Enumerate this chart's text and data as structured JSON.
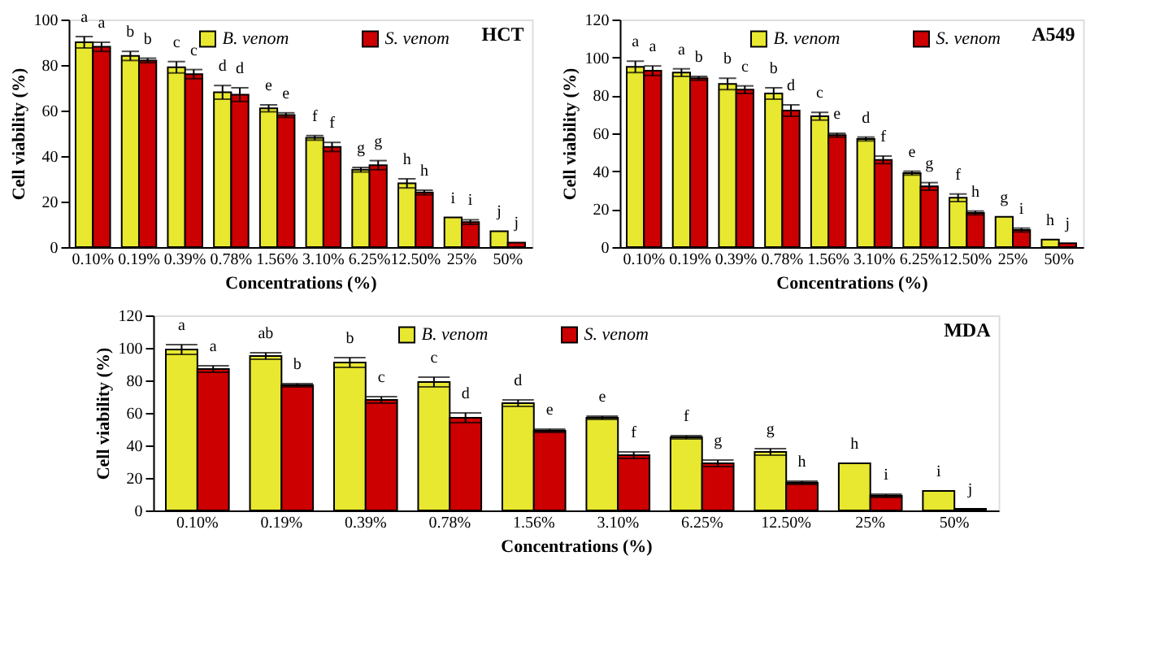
{
  "chart_data": [
    {
      "type": "bar",
      "title": "HCT",
      "xlabel": "Concentrations (%)",
      "ylabel": "Cell viability (%)",
      "categories": [
        "0.10%",
        "0.19%",
        "0.39%",
        "0.78%",
        "1.56%",
        "3.10%",
        "6.25%",
        "12.50%",
        "25%",
        "50%"
      ],
      "ylim": [
        0,
        100
      ],
      "yticks": [
        0,
        20,
        40,
        60,
        80,
        100
      ],
      "grid": false,
      "legend": "top",
      "series": [
        {
          "name": "B. venom",
          "color": "#e8e830",
          "values": [
            90,
            84,
            79,
            68,
            61,
            48,
            34,
            28,
            13,
            7
          ],
          "errors": [
            2.5,
            2,
            2.5,
            3,
            1.5,
            1,
            1,
            2,
            null,
            null
          ],
          "value_labels": [
            "a",
            "b",
            "c",
            "d",
            "e",
            "f",
            "g",
            "h",
            "i",
            "j"
          ]
        },
        {
          "name": "S. venom",
          "color": "#cc0000",
          "values": [
            88,
            82,
            76,
            67,
            58,
            44,
            36,
            24,
            11,
            2
          ],
          "errors": [
            2,
            1,
            2,
            3,
            1,
            2,
            2,
            1,
            1,
            null
          ],
          "value_labels": [
            "a",
            "b",
            "c",
            "d",
            "e",
            "f",
            "g",
            "h",
            "i",
            "j"
          ]
        }
      ]
    },
    {
      "type": "bar",
      "title": "A549",
      "xlabel": "Concentrations (%)",
      "ylabel": "Cell viability (%)",
      "categories": [
        "0.10%",
        "0.19%",
        "0.39%",
        "0.78%",
        "1.56%",
        "3.10%",
        "6.25%",
        "12.50%",
        "25%",
        "50%"
      ],
      "ylim": [
        0,
        120
      ],
      "yticks": [
        0,
        20,
        40,
        60,
        80,
        100,
        120
      ],
      "grid": false,
      "legend": "top",
      "series": [
        {
          "name": "B. venom",
          "color": "#e8e830",
          "values": [
            95,
            92,
            86,
            81,
            69,
            57,
            39,
            26,
            16,
            4
          ],
          "errors": [
            3,
            2,
            3,
            3,
            2,
            1,
            1,
            2,
            null,
            null
          ],
          "value_labels": [
            "a",
            "a",
            "b",
            "b",
            "c",
            "d",
            "e",
            "f",
            "g",
            "h"
          ]
        },
        {
          "name": "S. venom",
          "color": "#cc0000",
          "values": [
            93,
            89,
            83,
            72,
            59,
            46,
            32,
            18,
            9,
            2
          ],
          "errors": [
            2.5,
            1,
            2,
            3,
            1,
            2,
            2,
            1,
            1,
            null
          ],
          "value_labels": [
            "a",
            "b",
            "c",
            "d",
            "e",
            "f",
            "g",
            "h",
            "i",
            "j"
          ]
        }
      ]
    },
    {
      "type": "bar",
      "title": "MDA",
      "xlabel": "Concentrations (%)",
      "ylabel": "Cell viability (%)",
      "categories": [
        "0.10%",
        "0.19%",
        "0.39%",
        "0.78%",
        "1.56%",
        "3.10%",
        "6.25%",
        "12.50%",
        "25%",
        "50%"
      ],
      "ylim": [
        0,
        120
      ],
      "yticks": [
        0,
        20,
        40,
        60,
        80,
        100,
        120
      ],
      "grid": false,
      "legend": "top",
      "series": [
        {
          "name": "B. venom",
          "color": "#e8e830",
          "values": [
            99,
            95,
            91,
            79,
            66,
            57,
            45,
            36,
            29,
            12
          ],
          "errors": [
            3,
            2,
            3,
            3,
            2,
            1,
            1,
            2,
            null,
            null
          ],
          "value_labels": [
            "a",
            "ab",
            "b",
            "c",
            "d",
            "e",
            "f",
            "g",
            "h",
            "i"
          ]
        },
        {
          "name": "S. venom",
          "color": "#cc0000",
          "values": [
            87,
            77,
            68,
            57,
            49,
            34,
            29,
            17,
            9,
            1
          ],
          "errors": [
            2,
            1,
            2,
            3,
            1,
            2,
            2,
            1,
            1,
            null
          ],
          "value_labels": [
            "a",
            "b",
            "c",
            "d",
            "e",
            "f",
            "g",
            "h",
            "i",
            "j"
          ]
        }
      ]
    }
  ]
}
